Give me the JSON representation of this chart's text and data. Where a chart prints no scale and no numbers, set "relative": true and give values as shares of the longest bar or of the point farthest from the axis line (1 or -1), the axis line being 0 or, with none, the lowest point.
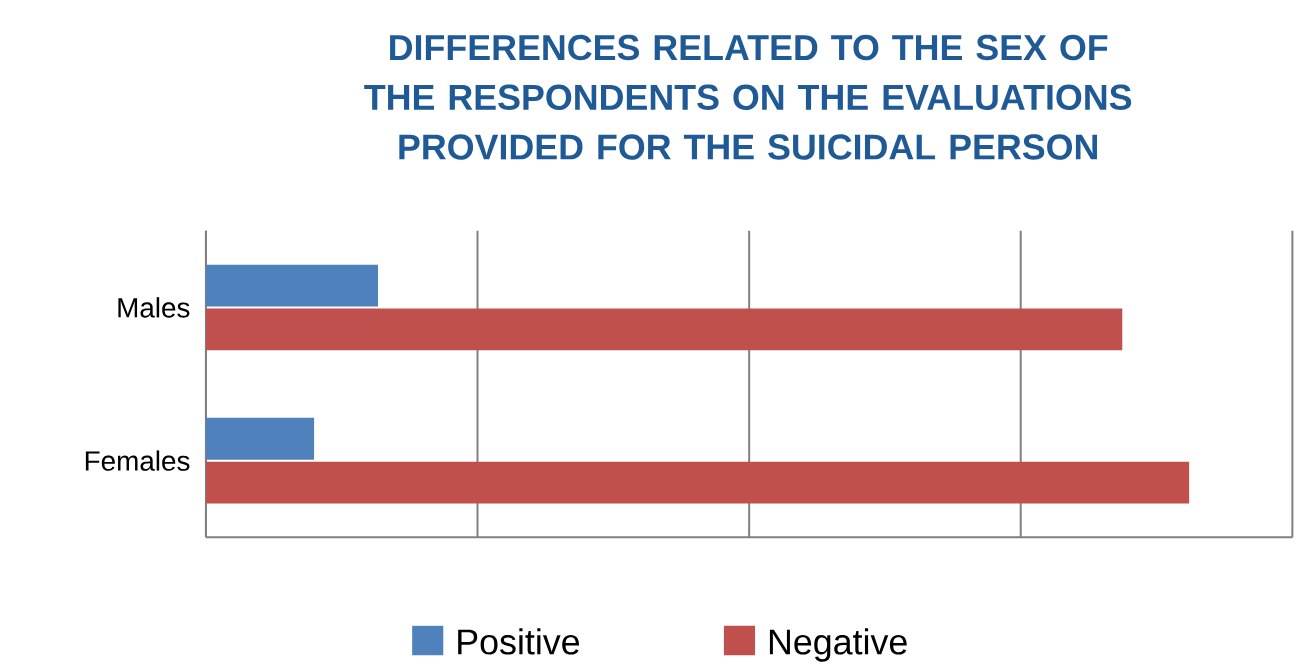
{
  "chart_data": {
    "type": "bar",
    "orientation": "horizontal",
    "relative": true,
    "title": "DIFFERENCES RELATED TO THE SEX OF THE RESPONDENTS ON THE EVALUATIONS PROVIDED FOR THE SUICIDAL PERSON",
    "categories": [
      "Males",
      "Females"
    ],
    "series": [
      {
        "name": "Positive",
        "color": "#4f81bd",
        "values": [
          0.175,
          0.11
        ]
      },
      {
        "name": "Negative",
        "color": "#c0504d",
        "values": [
          0.932,
          1.0
        ]
      }
    ],
    "grid": "x",
    "legend": "bottom"
  }
}
